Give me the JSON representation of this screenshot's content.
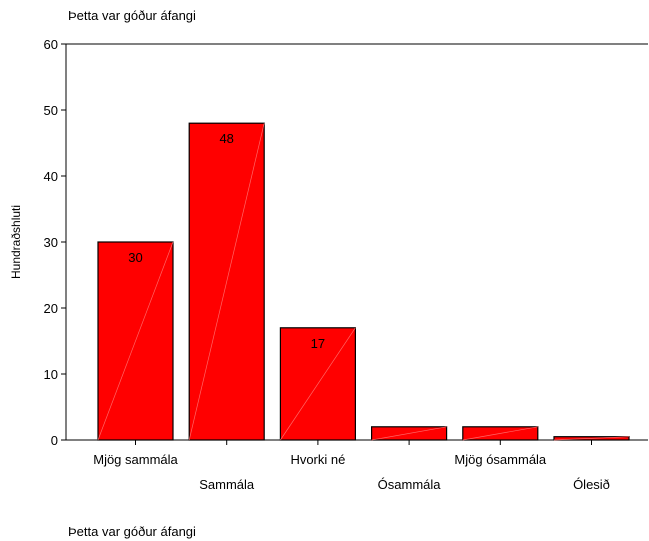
{
  "chart_data": {
    "type": "bar",
    "title": "Þetta var góður áfangi",
    "xlabel": "Þetta var góður áfangi",
    "ylabel": "Hundraðshluti",
    "categories": [
      "Mjög sammála",
      "Sammála",
      "Hvorki né",
      "Ósammála",
      "Mjög ósammála",
      "Ólesið"
    ],
    "values": [
      30,
      48,
      17,
      2,
      2,
      0.5
    ],
    "data_labels": [
      "30",
      "48",
      "17",
      "",
      "",
      ""
    ],
    "ylim": [
      0,
      60
    ],
    "yticks": [
      0,
      10,
      20,
      30,
      40,
      50,
      60
    ],
    "grid": false,
    "bar_color": "#ff0000"
  }
}
